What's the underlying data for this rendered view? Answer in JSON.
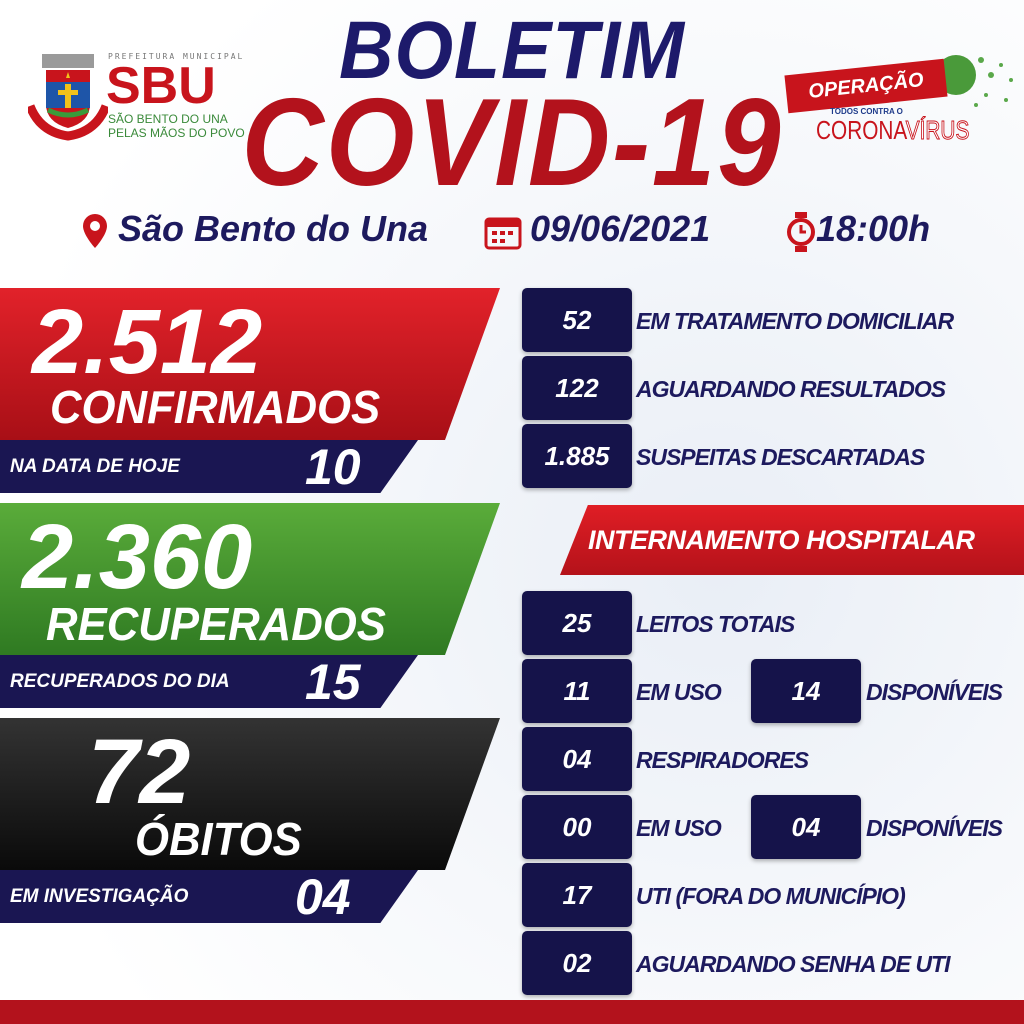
{
  "logo_left": {
    "top": "PREFEITURA MUNICIPAL",
    "name": "SBU",
    "line1": "SÃO BENTO DO UNA",
    "line2": "PELAS MÃOS DO POVO"
  },
  "logo_right": {
    "line1": "OPERAÇÃO",
    "line2": "TODOS CONTRA O",
    "line3a": "CORONA",
    "line3b": "VÍRUS"
  },
  "title": {
    "line1": "BOLETIM",
    "line2": "COVID-19"
  },
  "info": {
    "city": "São Bento do Una",
    "date": "09/06/2021",
    "time": "18:00h"
  },
  "colors": {
    "navy": "#1d1a5e",
    "red": "#c8141c",
    "green": "#4a9a2e",
    "black": "#111111"
  },
  "confirmed": {
    "value": "2.512",
    "label": "CONFIRMADOS",
    "sub_label": "NA DATA DE HOJE",
    "sub_value": "10"
  },
  "recovered": {
    "value": "2.360",
    "label": "RECUPERADOS",
    "sub_label": "RECUPERADOS DO DIA",
    "sub_value": "15"
  },
  "deaths": {
    "value": "72",
    "label": "ÓBITOS",
    "sub_label": "EM INVESTIGAÇÃO",
    "sub_value": "04"
  },
  "status": [
    {
      "value": "52",
      "label": "EM TRATAMENTO DOMICILIAR"
    },
    {
      "value": "122",
      "label": "AGUARDANDO RESULTADOS"
    },
    {
      "value": "1.885",
      "label": "SUSPEITAS DESCARTADAS"
    }
  ],
  "hospital": {
    "banner": "INTERNAMENTO HOSPITALAR",
    "beds_total": {
      "value": "25",
      "label": "LEITOS TOTAIS"
    },
    "beds_use": {
      "value": "11",
      "label": "EM USO",
      "free_value": "14",
      "free_label": "DISPONÍVEIS"
    },
    "respirators": {
      "value": "04",
      "label": "RESPIRADORES"
    },
    "resp_use": {
      "value": "00",
      "label": "EM USO",
      "free_value": "04",
      "free_label": "DISPONÍVEIS"
    },
    "icu": {
      "value": "17",
      "label": "UTI (FORA DO MUNICÍPIO)"
    },
    "icu_wait": {
      "value": "02",
      "label": "AGUARDANDO SENHA DE UTI"
    }
  }
}
